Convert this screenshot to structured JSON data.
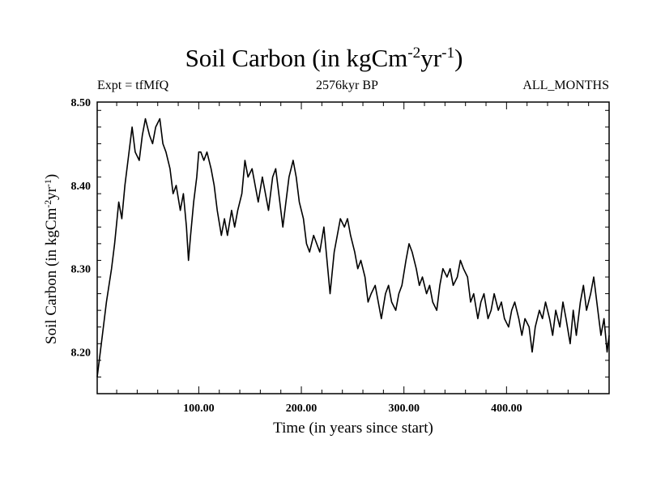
{
  "header": {
    "title_main": "Soil Carbon (in kgCm",
    "title_sup1": "-2",
    "title_mid": "yr",
    "title_sup2": "-1",
    "title_end": ")",
    "expt": "Expt = tfMfQ",
    "subtitle": "2576kyr BP",
    "months": "ALL_MONTHS"
  },
  "axes": {
    "xlabel": "Time (in years since start)",
    "ylabel_main": "Soil Carbon (in kgCm",
    "ylabel_sup1": "-2",
    "ylabel_mid": "yr",
    "ylabel_sup2": "-1",
    "ylabel_end": ")"
  },
  "colors": {
    "line": "#000000",
    "background": "#ffffff"
  },
  "chart_data": {
    "type": "line",
    "title": "Soil Carbon (in kgCm-2yr-1)",
    "xlabel": "Time (in years since start)",
    "ylabel": "Soil Carbon (in kgCm-2yr-1)",
    "xlim": [
      1,
      500
    ],
    "ylim": [
      8.15,
      8.5
    ],
    "x_ticks": [
      100,
      200,
      300,
      400
    ],
    "x_tick_labels": [
      "100.00",
      "200.00",
      "300.00",
      "400.00"
    ],
    "y_ticks": [
      8.2,
      8.3,
      8.4,
      8.5
    ],
    "y_tick_labels": [
      "8.20",
      "8.30",
      "8.40",
      "8.50"
    ],
    "series": [
      {
        "name": "Soil Carbon",
        "x": [
          1,
          5,
          10,
          15,
          18,
          22,
          25,
          28,
          32,
          35,
          38,
          42,
          45,
          48,
          52,
          55,
          58,
          62,
          65,
          68,
          72,
          75,
          78,
          82,
          85,
          88,
          90,
          92,
          95,
          98,
          100,
          102,
          105,
          108,
          112,
          115,
          118,
          122,
          125,
          128,
          132,
          135,
          138,
          142,
          145,
          148,
          152,
          155,
          158,
          162,
          165,
          168,
          172,
          175,
          178,
          182,
          185,
          188,
          192,
          195,
          198,
          202,
          205,
          208,
          212,
          215,
          218,
          222,
          225,
          228,
          232,
          235,
          238,
          242,
          245,
          248,
          252,
          255,
          258,
          262,
          265,
          268,
          272,
          275,
          278,
          282,
          285,
          288,
          292,
          295,
          298,
          302,
          305,
          308,
          312,
          315,
          318,
          322,
          325,
          328,
          332,
          335,
          338,
          342,
          345,
          348,
          352,
          355,
          358,
          362,
          365,
          368,
          372,
          375,
          378,
          382,
          385,
          388,
          392,
          395,
          398,
          402,
          405,
          408,
          412,
          415,
          418,
          422,
          425,
          428,
          432,
          435,
          438,
          442,
          445,
          448,
          452,
          455,
          458,
          462,
          465,
          468,
          472,
          475,
          478,
          482,
          485,
          488,
          492,
          495,
          498,
          500
        ],
        "values": [
          8.17,
          8.21,
          8.26,
          8.3,
          8.33,
          8.38,
          8.36,
          8.4,
          8.44,
          8.47,
          8.44,
          8.43,
          8.46,
          8.48,
          8.46,
          8.45,
          8.47,
          8.48,
          8.45,
          8.44,
          8.42,
          8.39,
          8.4,
          8.37,
          8.39,
          8.35,
          8.31,
          8.34,
          8.38,
          8.41,
          8.44,
          8.44,
          8.43,
          8.44,
          8.42,
          8.4,
          8.37,
          8.34,
          8.36,
          8.34,
          8.37,
          8.35,
          8.37,
          8.39,
          8.43,
          8.41,
          8.42,
          8.4,
          8.38,
          8.41,
          8.39,
          8.37,
          8.41,
          8.42,
          8.39,
          8.35,
          8.38,
          8.41,
          8.43,
          8.41,
          8.38,
          8.36,
          8.33,
          8.32,
          8.34,
          8.33,
          8.32,
          8.35,
          8.31,
          8.27,
          8.32,
          8.34,
          8.36,
          8.35,
          8.36,
          8.34,
          8.32,
          8.3,
          8.31,
          8.29,
          8.26,
          8.27,
          8.28,
          8.26,
          8.24,
          8.27,
          8.28,
          8.26,
          8.25,
          8.27,
          8.28,
          8.31,
          8.33,
          8.32,
          8.3,
          8.28,
          8.29,
          8.27,
          8.28,
          8.26,
          8.25,
          8.28,
          8.3,
          8.29,
          8.3,
          8.28,
          8.29,
          8.31,
          8.3,
          8.29,
          8.26,
          8.27,
          8.24,
          8.26,
          8.27,
          8.24,
          8.25,
          8.27,
          8.25,
          8.26,
          8.24,
          8.23,
          8.25,
          8.26,
          8.24,
          8.22,
          8.24,
          8.23,
          8.2,
          8.23,
          8.25,
          8.24,
          8.26,
          8.24,
          8.22,
          8.25,
          8.23,
          8.26,
          8.24,
          8.21,
          8.25,
          8.22,
          8.26,
          8.28,
          8.25,
          8.27,
          8.29,
          8.26,
          8.22,
          8.24,
          8.2,
          8.22
        ]
      }
    ]
  }
}
